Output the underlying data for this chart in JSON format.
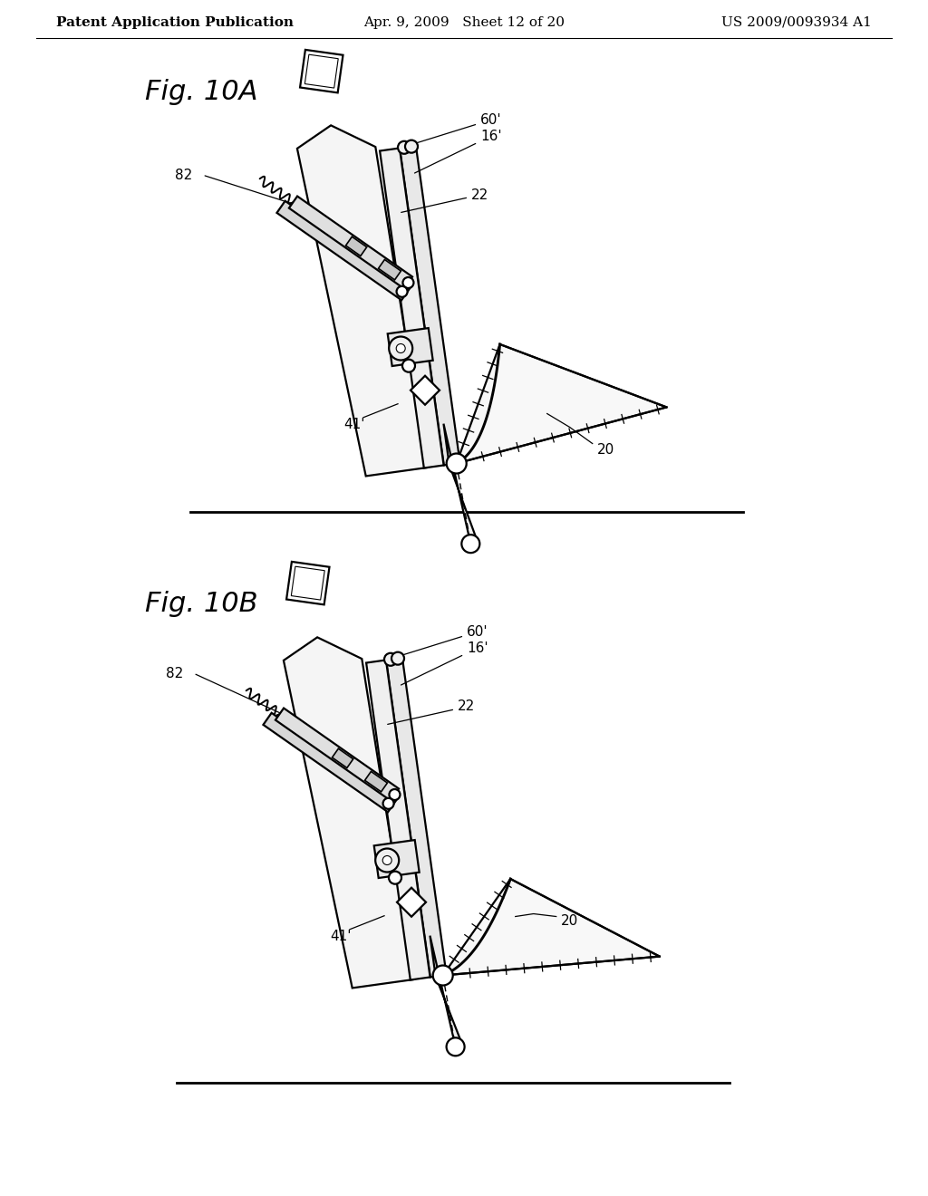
{
  "background_color": "#ffffff",
  "line_color": "#000000",
  "header_left": "Patent Application Publication",
  "header_center": "Apr. 9, 2009   Sheet 12 of 20",
  "header_right": "US 2009/0093934 A1",
  "header_fontsize": 11,
  "fig_label_fontsize": 22,
  "annotation_fontsize": 11,
  "fig10A_label": "Fig. 10A",
  "fig10B_label": "Fig. 10B"
}
